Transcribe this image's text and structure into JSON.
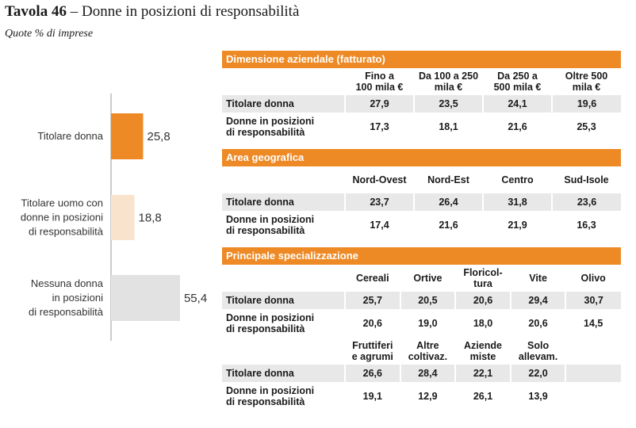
{
  "title_bold": "Tavola 46",
  "title_rest": " – Donne in posizioni di responsabilità",
  "subtitle": "Quote % di imprese",
  "chart_data": {
    "type": "bar",
    "orientation": "horizontal",
    "categories": [
      [
        "Titolare donna"
      ],
      [
        "Titolare uomo con",
        "donne in posizioni",
        "di responsabilità"
      ],
      [
        "Nessuna donna",
        "in posizioni",
        "di responsabilità"
      ]
    ],
    "values": [
      25.8,
      18.8,
      55.4
    ],
    "value_labels": [
      "25,8",
      "18,8",
      "55,4"
    ],
    "colors": [
      "#ee8a26",
      "#f9e3cc",
      "#e2e2e2"
    ],
    "xlim": [
      0,
      60
    ],
    "grid": false
  },
  "tables": {
    "size": {
      "header": "Dimensione aziendale (fatturato)",
      "columns": [
        [
          "Fino a",
          "100 mila €"
        ],
        [
          "Da 100 a 250",
          "mila €"
        ],
        [
          "Da 250 a",
          "500 mila €"
        ],
        [
          "Oltre 500",
          "mila €"
        ]
      ],
      "rows": [
        {
          "label": [
            "Titolare donna"
          ],
          "values": [
            "27,9",
            "23,5",
            "24,1",
            "19,6"
          ]
        },
        {
          "label": [
            "Donne in posizioni",
            "di responsabilità"
          ],
          "values": [
            "17,3",
            "18,1",
            "21,6",
            "25,3"
          ]
        }
      ]
    },
    "geo": {
      "header": "Area geografica",
      "columns": [
        [
          "Nord-Ovest"
        ],
        [
          "Nord-Est"
        ],
        [
          "Centro"
        ],
        [
          "Sud-Isole"
        ]
      ],
      "rows": [
        {
          "label": [
            "Titolare donna"
          ],
          "values": [
            "23,7",
            "26,4",
            "31,8",
            "23,6"
          ]
        },
        {
          "label": [
            "Donne in posizioni",
            "di responsabilità"
          ],
          "values": [
            "17,4",
            "21,6",
            "21,9",
            "16,3"
          ]
        }
      ]
    },
    "spec": {
      "header": "Principale specializzazione",
      "columns_a": [
        [
          "Cereali"
        ],
        [
          "Ortive"
        ],
        [
          "Floricol-",
          "tura"
        ],
        [
          "Vite"
        ],
        [
          "Olivo"
        ]
      ],
      "rows_a": [
        {
          "label": [
            "Titolare donna"
          ],
          "values": [
            "25,7",
            "20,5",
            "20,6",
            "29,4",
            "30,7"
          ]
        },
        {
          "label": [
            "Donne in posizioni",
            "di responsabilità"
          ],
          "values": [
            "20,6",
            "19,0",
            "18,0",
            "20,6",
            "14,5"
          ]
        }
      ],
      "columns_b": [
        [
          "Fruttiferi",
          "e agrumi"
        ],
        [
          "Altre",
          "coltivaz."
        ],
        [
          "Aziende",
          "miste"
        ],
        [
          "Solo",
          "allevam."
        ],
        [
          ""
        ]
      ],
      "rows_b": [
        {
          "label": [
            "Titolare donna"
          ],
          "values": [
            "26,6",
            "28,4",
            "22,1",
            "22,0",
            ""
          ]
        },
        {
          "label": [
            "Donne in posizioni",
            "di responsabilità"
          ],
          "values": [
            "19,1",
            "12,9",
            "26,1",
            "13,9",
            ""
          ]
        }
      ]
    }
  }
}
